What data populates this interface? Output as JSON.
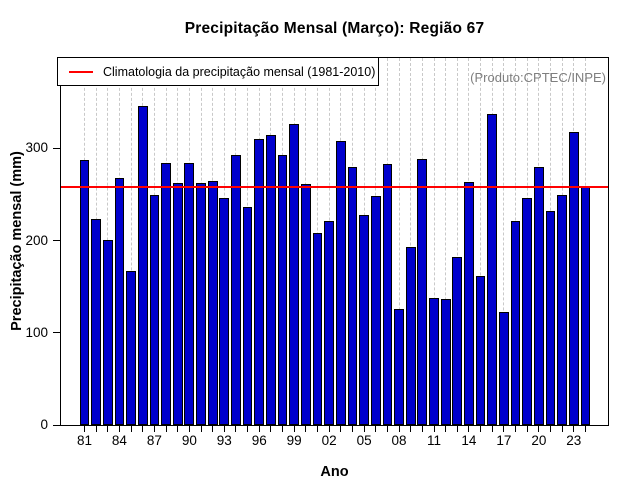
{
  "chart_data": {
    "type": "bar",
    "title": "Precipitação Mensal (Março): Região 67",
    "xlabel": "Ano",
    "ylabel": "Precipitação mensal (mm)",
    "legend_label": "Climatologia da precipitação mensal (1981-2010)",
    "annotation": "(Produto:CPTEC/INPE)",
    "x": [
      1981,
      1982,
      1983,
      1984,
      1985,
      1986,
      1987,
      1988,
      1989,
      1990,
      1991,
      1992,
      1993,
      1994,
      1995,
      1996,
      1997,
      1998,
      1999,
      2000,
      2001,
      2002,
      2003,
      2004,
      2005,
      2006,
      2007,
      2008,
      2009,
      2010,
      2011,
      2012,
      2013,
      2014,
      2015,
      2016,
      2017,
      2018,
      2019,
      2020,
      2021,
      2022,
      2023,
      2024
    ],
    "values": [
      287,
      223,
      201,
      268,
      167,
      346,
      249,
      284,
      262,
      284,
      262,
      265,
      246,
      293,
      236,
      310,
      314,
      293,
      326,
      261,
      208,
      221,
      308,
      280,
      228,
      248,
      283,
      126,
      193,
      288,
      138,
      137,
      182,
      264,
      162,
      337,
      123,
      221,
      246,
      280,
      232,
      249,
      318,
      258
    ],
    "climatology_value": 258,
    "y_ticks": [
      0,
      100,
      200,
      300
    ],
    "x_tick_labels": [
      "81",
      "84",
      "87",
      "90",
      "93",
      "96",
      "99",
      "02",
      "05",
      "08",
      "11",
      "14",
      "17",
      "20",
      "23"
    ],
    "x_tick_every": 3,
    "ylim": [
      0,
      398
    ],
    "grid": "vertical-dashed",
    "legend_position": "top-left",
    "bar_color": "#0000CD",
    "bar_border_color": "#000000",
    "line_color": "#FF0000",
    "grid_color": "#c9c9c9",
    "annotation_color": "#7f7f7f"
  }
}
